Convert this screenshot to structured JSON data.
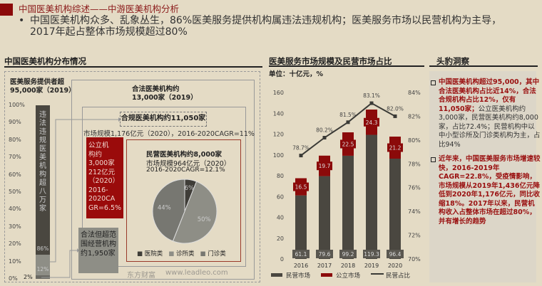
{
  "header": {
    "title": "中国医美机构综述——中游医美机构分析",
    "bullet": "中国医美机构众多、乱象丛生，86%医美服务提供机构属违法违规机构；医美服务市场以民营机构为主导，\n2017年起占整体市场规模超过80%"
  },
  "left": {
    "title": "中国医美机构分布情况",
    "providers": "医美服务提供者超\n95,000家（2019）",
    "yticks": [
      "100%",
      "90%",
      "80%",
      "70%",
      "60%",
      "50%",
      "40%",
      "30%",
      "20%",
      "10%",
      "0%"
    ],
    "stack": {
      "illegal_label": "违法违规医美机构超八万家",
      "illegal_pct": "86%",
      "illegal": 86,
      "legal_pct": "12%",
      "legal": 12,
      "over_pct": "2%",
      "over": 2
    },
    "legal": "合法医美机构约\n13,000家（2019）",
    "compliant": "合规医美机构约11,050家",
    "market": "市场规模1,176亿元（2020），2016-2020CAGR=11%",
    "public": "公立机\n构约\n3,000家\n212亿元\n（2020）\n2016-\n2020CA\nGR=6.5%",
    "private_title": "民营医美机构约8,000家",
    "private_market": "市场规模964亿元（2020）",
    "private_cagr": "2016-2020CAGR=12.1%",
    "pie": [
      {
        "name": "医院类",
        "pct": 6,
        "label": "6%",
        "color": "#3f3d38"
      },
      {
        "name": "诊所类",
        "pct": 50,
        "label": "50%",
        "color": "#8e8e86"
      },
      {
        "name": "门诊类",
        "pct": 44,
        "label": "44%",
        "color": "#777771"
      }
    ],
    "over": "合法但超范围经营机构约1,950家"
  },
  "watermark": {
    "a": "东方财富",
    "b": "www.leadleo.com"
  },
  "chart_data": {
    "type": "bar",
    "title": "医美服务市场规模及民营市场占比",
    "unit": "单位：十亿元，%",
    "categories": [
      "2016",
      "2017",
      "2018",
      "2019",
      "2020"
    ],
    "series": [
      {
        "name": "民营市场",
        "values": [
          61.1,
          79.6,
          99.2,
          119.3,
          96.4
        ],
        "color": "#4a4740"
      },
      {
        "name": "公立市场",
        "values": [
          16.5,
          19.7,
          22.5,
          24.3,
          21.2
        ],
        "color": "#8b0a0a"
      },
      {
        "name": "民营占比",
        "values": [
          78.7,
          80.2,
          81.5,
          83.1,
          82.0
        ],
        "labels": [
          "78.7%",
          "80.2%",
          "81.5%",
          "83.1%",
          "82.0%"
        ],
        "axis": "right"
      }
    ],
    "ylim": [
      0,
      160
    ],
    "yticks": [
      "0",
      "20",
      "40",
      "60",
      "80",
      "100",
      "120",
      "140",
      "160"
    ],
    "y2lim": [
      70,
      84
    ],
    "y2ticks": [
      "70%",
      "72%",
      "74%",
      "76%",
      "78%",
      "80%",
      "82%",
      "84%"
    ],
    "legend": "bottom"
  },
  "right": {
    "title": "头豹洞察",
    "p1_red": "中国医美机构超过95,000，其中合法医美机构占比近14%，合法合规机构占比12%，仅有11,050家；",
    "p1_rest": "公立医美机构约3,000家，民营医美机构约8,000家，占比72.4%；民营机构中以中小型诊所及门诊类机构为主，占比94%",
    "p2_red": "近年来，中国医美服务市场增速较快，2016-2019年CAGR=22.8%，受疫情影响，市场规模从2019年1,436亿元降低到2020年1,176亿元，同比收缩18%。2017年以来，民营机构收入占整体市场在超过80%，并有增长的趋势"
  }
}
